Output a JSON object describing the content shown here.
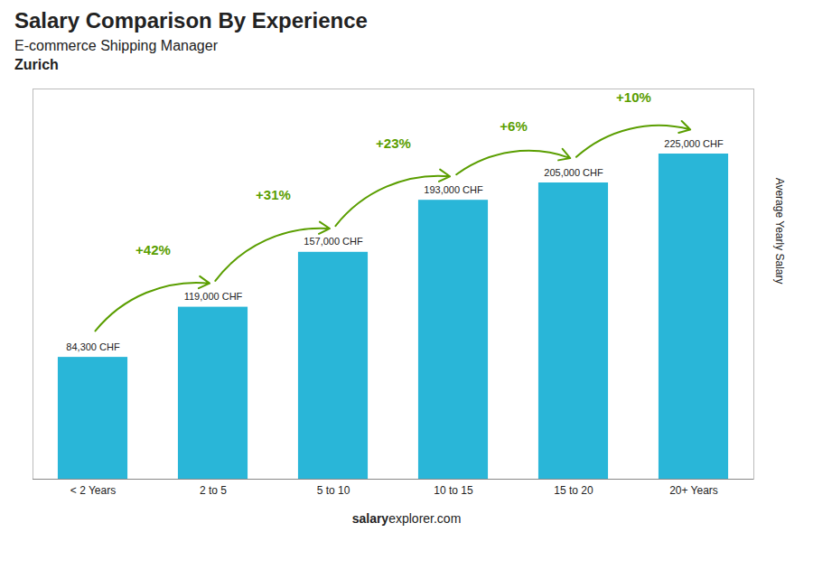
{
  "chart_data": {
    "type": "bar",
    "title": "Salary Comparison By Experience",
    "subtitle": "E-commerce Shipping Manager",
    "city": "Zurich",
    "ylabel": "Average Yearly Salary",
    "watermark": [
      "salary",
      "explorer.com"
    ],
    "categories": [
      "< 2 Years",
      "2 to 5",
      "5 to 10",
      "10 to 15",
      "15 to 20",
      "20+ Years"
    ],
    "values": [
      84300,
      119000,
      157000,
      193000,
      205000,
      225000
    ],
    "value_labels": [
      "84,300 CHF",
      "119,000 CHF",
      "157,000 CHF",
      "193,000 CHF",
      "205,000 CHF",
      "225,000 CHF"
    ],
    "annotations": [
      "+42%",
      "+31%",
      "+23%",
      "+6%",
      "+10%"
    ],
    "color": "#29B6D8",
    "ylim": [
      0,
      270000
    ],
    "grid": false,
    "data_labels": true,
    "tick_labels": "x"
  }
}
